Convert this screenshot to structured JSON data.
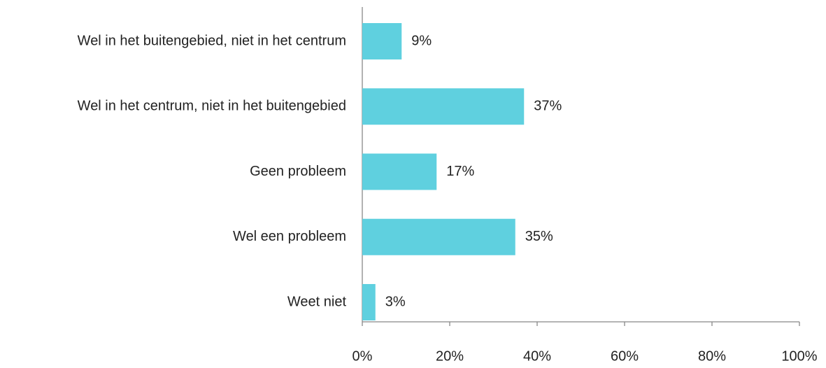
{
  "chart_data": {
    "type": "bar",
    "orientation": "horizontal",
    "categories": [
      "Wel in het buitengebied, niet in het centrum",
      "Wel in het centrum, niet in het buitengebied",
      "Geen probleem",
      "Wel een probleem",
      "Weet niet"
    ],
    "values": [
      9,
      37,
      17,
      35,
      3
    ],
    "value_labels": [
      "9%",
      "37%",
      "17%",
      "35%",
      "3%"
    ],
    "color": "#5fd0df",
    "xlim": [
      0,
      100
    ],
    "xticks": [
      {
        "value": 0,
        "label": "0%"
      },
      {
        "value": 20,
        "label": "20%"
      },
      {
        "value": 40,
        "label": "40%"
      },
      {
        "value": 60,
        "label": "60%"
      },
      {
        "value": 80,
        "label": "80%"
      },
      {
        "value": 100,
        "label": "100%"
      }
    ],
    "grid": false
  }
}
